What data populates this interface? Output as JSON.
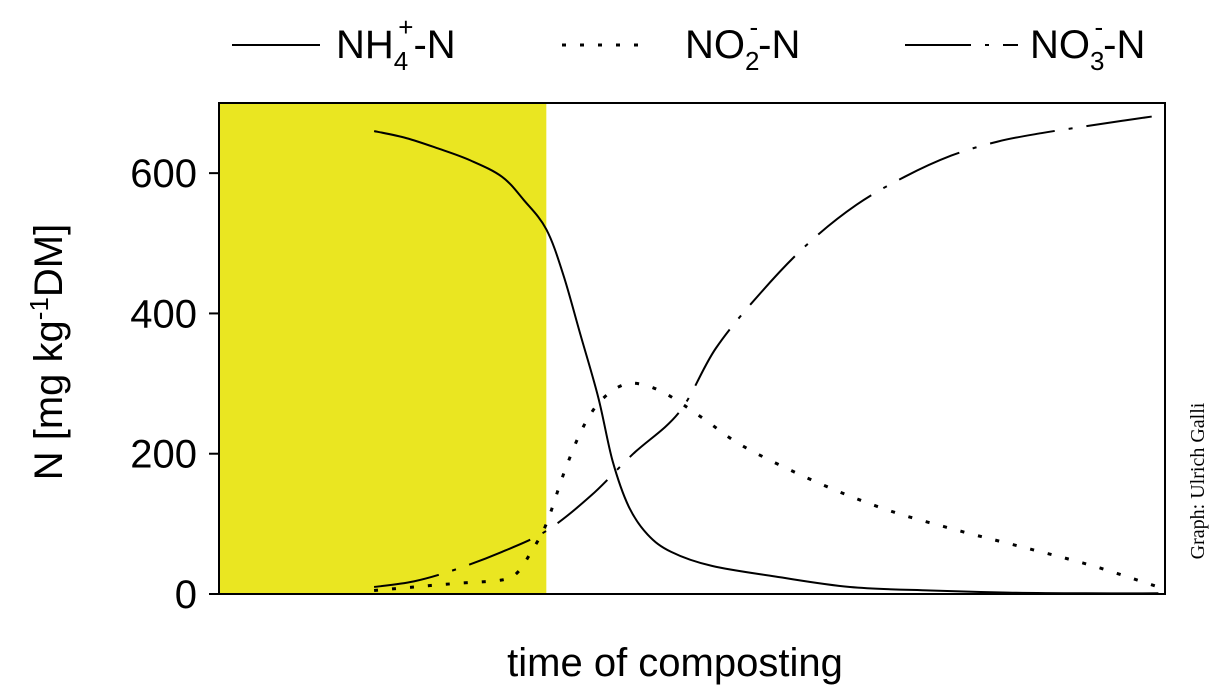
{
  "chart_data": {
    "type": "line",
    "xlabel": "time of composting",
    "ylabel": {
      "prefix": "N [mg kg",
      "sup": "-1",
      "suffix": "DM]"
    },
    "ylim": [
      0,
      700
    ],
    "yticks": [
      "0",
      "200",
      "400",
      "600"
    ],
    "ytick_values": [
      0,
      200,
      400,
      600
    ],
    "xlim": [
      0,
      100
    ],
    "grid": false,
    "legend_position": "top",
    "highlight_region": {
      "x_start": 0,
      "x_end": 34.6,
      "color": "#EAE621"
    },
    "credit": "Graph: Ulrich Galli",
    "series": [
      {
        "key": "nh4",
        "name": {
          "base": "NH",
          "sub": "4",
          "sup": "+",
          "suffix": "-N"
        },
        "style": "solid",
        "x": [
          16.4,
          19.8,
          23.2,
          26.6,
          29.9,
          32.2,
          34.6,
          36.4,
          38.2,
          40.1,
          41.6,
          43.3,
          45.3,
          47.8,
          52.1,
          58.8,
          66.7,
          75.2,
          83.4,
          91.6,
          99.3
        ],
        "y": [
          660,
          650,
          635,
          618,
          595,
          562,
          520,
          455,
          370,
          280,
          190,
          125,
          85,
          60,
          40,
          25,
          10,
          5,
          2,
          1,
          1
        ]
      },
      {
        "key": "no2",
        "name": {
          "base": "NO",
          "sub": "2",
          "sup": "-",
          "suffix": "-N"
        },
        "style": "dotted",
        "x": [
          16.4,
          20.6,
          25.0,
          29.9,
          31.5,
          33.0,
          34.6,
          36.4,
          38.2,
          40.0,
          42.2,
          44.3,
          47.3,
          51.2,
          55.5,
          63.1,
          70.6,
          78.3,
          85.5,
          92.4,
          99.3
        ],
        "y": [
          5,
          10,
          15,
          20,
          30,
          60,
          100,
          170,
          230,
          270,
          295,
          300,
          285,
          250,
          210,
          160,
          120,
          90,
          65,
          40,
          10
        ]
      },
      {
        "key": "no3",
        "name": {
          "base": "NO",
          "sub": "3",
          "sup": "-",
          "suffix": "-N"
        },
        "style": "dashdot",
        "x": [
          16.4,
          20.6,
          25.0,
          29.9,
          34.6,
          39.3,
          43.8,
          48.7,
          52.5,
          57.3,
          62.3,
          67.4,
          72.5,
          77.4,
          82.3,
          86.9,
          91.7,
          95.7,
          99.3
        ],
        "y": [
          10,
          18,
          35,
          60,
          90,
          140,
          200,
          260,
          350,
          430,
          500,
          555,
          595,
          625,
          645,
          657,
          667,
          675,
          682
        ]
      }
    ]
  }
}
